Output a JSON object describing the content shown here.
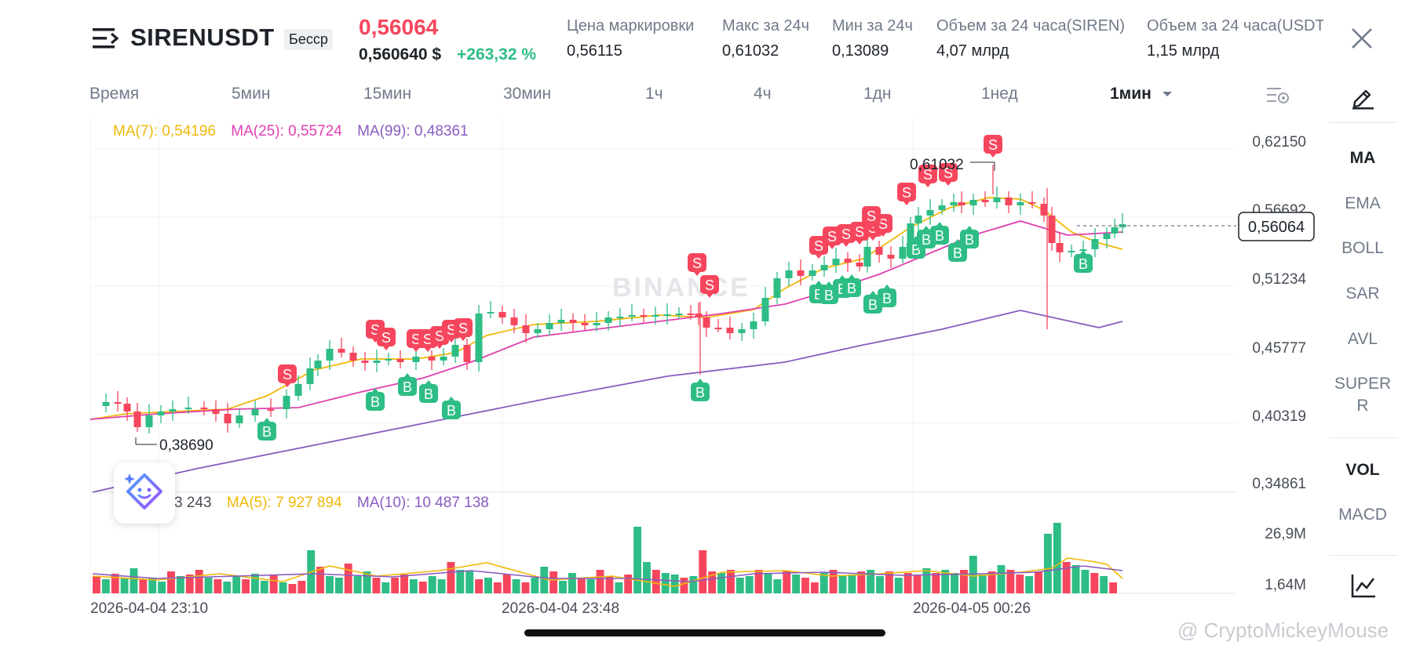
{
  "header": {
    "symbol": "SIRENUSDT",
    "contract_type": "Бесср",
    "last_price": "0,56064",
    "usd_price": "0,560640 $",
    "change_pct": "+263,32 %",
    "stats": [
      {
        "label": "Цена маркировки",
        "value": "0,56115"
      },
      {
        "label": "Макс за 24ч",
        "value": "0,61032"
      },
      {
        "label": "Мин за 24ч",
        "value": "0,13089"
      },
      {
        "label": "Объем за 24 часа(SIREN)",
        "value": "4,07 млрд"
      },
      {
        "label": "Объем за 24 часа(USDT)",
        "value": "1,15 млрд"
      }
    ]
  },
  "timeframes": {
    "label": "Время",
    "items": [
      "5мин",
      "15мин",
      "30мин",
      "1ч",
      "4ч",
      "1дн",
      "1нед"
    ],
    "active": "1мин"
  },
  "indicators": {
    "main": [
      "MA",
      "EMA",
      "BOLL",
      "SAR",
      "AVL",
      "SUPER"
    ],
    "main_wrap": "R",
    "sub": [
      "VOL",
      "MACD"
    ],
    "active_main": "MA",
    "active_sub": "VOL"
  },
  "ma_legend": {
    "ma7": "MA(7): 0,54196",
    "ma25": "MA(25): 0,55724",
    "ma99": "MA(99): 0,48361"
  },
  "vol_legend": {
    "vol": "3 243",
    "ma5": "MA(5): 7 927 894",
    "ma10": "MA(10): 10 487 138"
  },
  "chart": {
    "price_labels": [
      "0,62150",
      "0,56692",
      "0,51234",
      "0,45777",
      "0,40319",
      "0,34861"
    ],
    "volume_labels": [
      "26,9M",
      "1,64M"
    ],
    "current_price_tag": "0,56064",
    "high_marker": "0,61032",
    "low_marker": "0,38690",
    "date_labels": [
      "2026-04-04 23:10",
      "2026-04-04 23:48",
      "2026-04-05 00:26"
    ],
    "watermark": "BINANCE",
    "buy_mark": "B",
    "sell_mark": "S"
  },
  "credit": "@ CryptoMickeyMouse",
  "colors": {
    "up": "#2ebd85",
    "down": "#f6465d",
    "ma7": "#f0b90b",
    "ma25": "#e040b0",
    "ma99": "#8a5cc0"
  }
}
